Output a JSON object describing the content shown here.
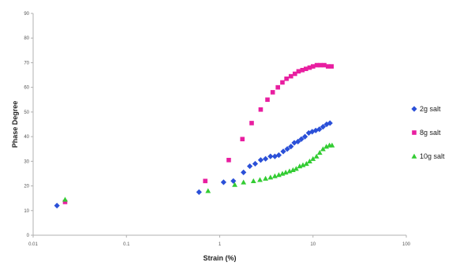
{
  "chart_data": {
    "type": "scatter",
    "xlabel": "Strain (%)",
    "ylabel": "Phase Degree",
    "x_scale": "log",
    "xlim": [
      0.01,
      100
    ],
    "ylim": [
      0,
      90
    ],
    "x_ticks": [
      "0.01",
      "0.1",
      "1",
      "10",
      "100"
    ],
    "y_ticks": [
      "0",
      "10",
      "20",
      "30",
      "40",
      "50",
      "60",
      "70",
      "80",
      "90"
    ],
    "grid": false,
    "legend_position": "right",
    "series": [
      {
        "name": "2g salt",
        "color": "#2b50d8",
        "marker": "diamond",
        "points": [
          [
            0.018,
            12
          ],
          [
            0.6,
            17.5
          ],
          [
            1.1,
            21.5
          ],
          [
            1.4,
            22
          ],
          [
            1.8,
            25.5
          ],
          [
            2.1,
            28
          ],
          [
            2.4,
            29
          ],
          [
            2.75,
            30.5
          ],
          [
            3.1,
            31
          ],
          [
            3.5,
            32
          ],
          [
            3.9,
            32
          ],
          [
            4.3,
            32.5
          ],
          [
            4.8,
            34
          ],
          [
            5.3,
            35
          ],
          [
            5.8,
            36
          ],
          [
            6.3,
            37.5
          ],
          [
            6.9,
            38
          ],
          [
            7.5,
            39
          ],
          [
            8.2,
            40
          ],
          [
            9,
            41.5
          ],
          [
            9.8,
            42
          ],
          [
            10.7,
            42.5
          ],
          [
            11.7,
            43
          ],
          [
            12.8,
            44
          ],
          [
            14,
            45
          ],
          [
            15.2,
            45.5
          ]
        ]
      },
      {
        "name": "8g salt",
        "color": "#e81ea0",
        "marker": "square",
        "points": [
          [
            0.022,
            13.5
          ],
          [
            0.7,
            22
          ],
          [
            1.25,
            30.5
          ],
          [
            1.75,
            39
          ],
          [
            2.2,
            45.5
          ],
          [
            2.75,
            51
          ],
          [
            3.25,
            55
          ],
          [
            3.7,
            58
          ],
          [
            4.2,
            60
          ],
          [
            4.7,
            62
          ],
          [
            5.2,
            63.5
          ],
          [
            5.8,
            64.5
          ],
          [
            6.4,
            65.5
          ],
          [
            7,
            66.5
          ],
          [
            7.7,
            67
          ],
          [
            8.4,
            67.5
          ],
          [
            9.2,
            68
          ],
          [
            10,
            68.5
          ],
          [
            11,
            69
          ],
          [
            12,
            69
          ],
          [
            13.2,
            69
          ],
          [
            14.5,
            68.5
          ],
          [
            15.8,
            68.5
          ]
        ]
      },
      {
        "name": "10g salt",
        "color": "#33cc33",
        "marker": "triangle",
        "points": [
          [
            0.022,
            14.5
          ],
          [
            0.75,
            18
          ],
          [
            1.45,
            20.5
          ],
          [
            1.8,
            21.5
          ],
          [
            2.3,
            22
          ],
          [
            2.7,
            22.5
          ],
          [
            3.1,
            23
          ],
          [
            3.5,
            23.5
          ],
          [
            3.9,
            24
          ],
          [
            4.3,
            24.5
          ],
          [
            4.7,
            25
          ],
          [
            5.1,
            25.5
          ],
          [
            5.6,
            26
          ],
          [
            6.1,
            26.5
          ],
          [
            6.6,
            27
          ],
          [
            7.2,
            28
          ],
          [
            7.8,
            28.5
          ],
          [
            8.5,
            29
          ],
          [
            9.2,
            30
          ],
          [
            10,
            31
          ],
          [
            10.9,
            32
          ],
          [
            11.8,
            33.5
          ],
          [
            12.8,
            35
          ],
          [
            13.9,
            36
          ],
          [
            15,
            36.5
          ],
          [
            16,
            36.5
          ]
        ]
      }
    ]
  }
}
